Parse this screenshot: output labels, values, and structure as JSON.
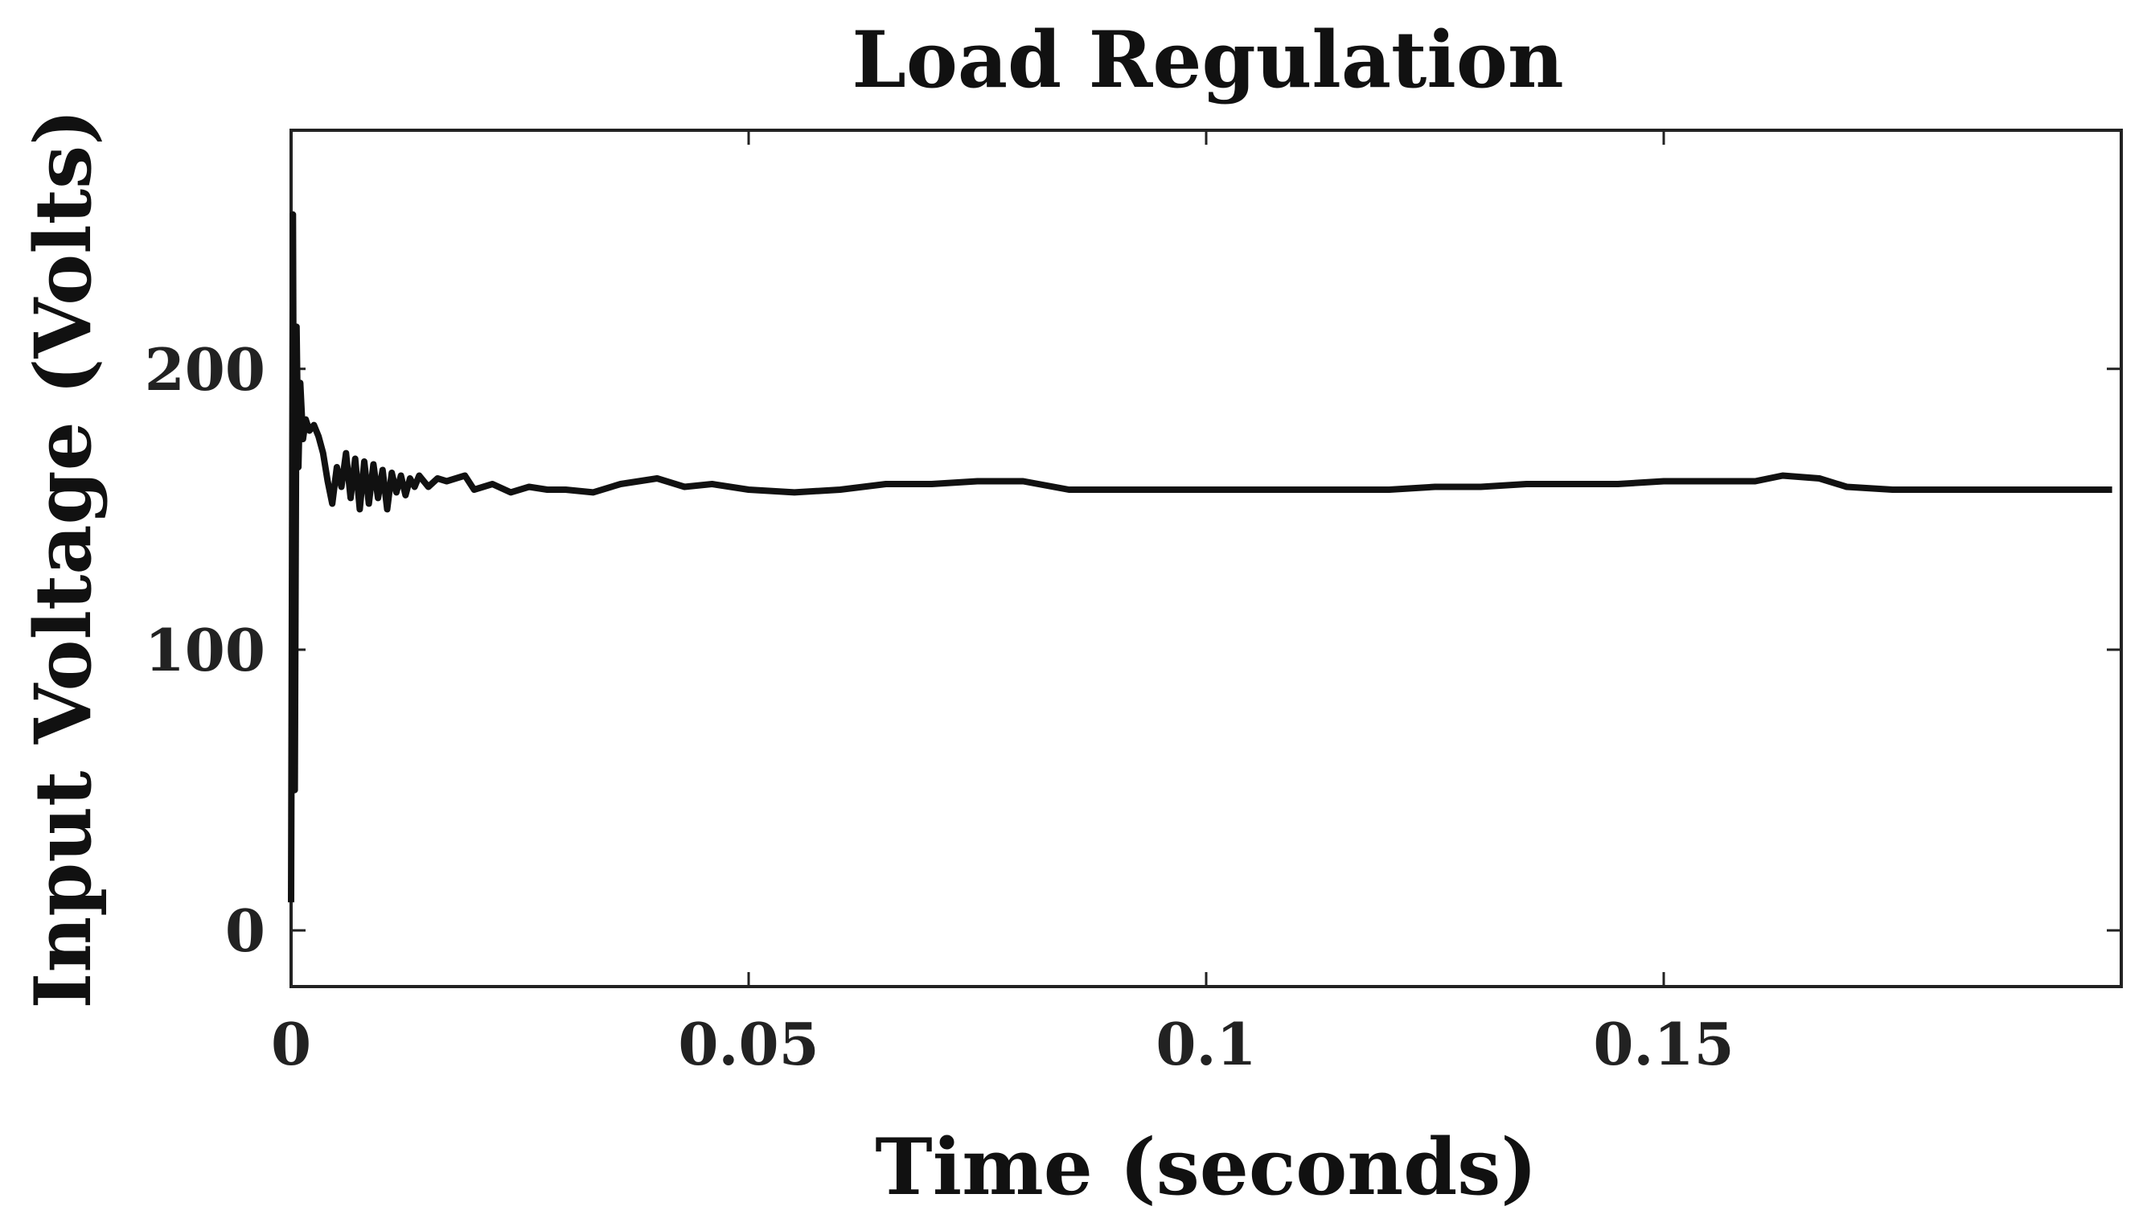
{
  "chart_data": {
    "type": "line",
    "title": "Load Regulation",
    "xlabel": "Time (seconds)",
    "ylabel": "Input Voltage (Volts)",
    "xlim": [
      0,
      0.2
    ],
    "ylim": [
      -20,
      285
    ],
    "xticks": [
      0,
      0.05,
      0.1,
      0.15
    ],
    "xtick_labels": [
      "0",
      "0.05",
      "0.1",
      "0.15"
    ],
    "yticks": [
      0,
      100,
      200
    ],
    "ytick_labels": [
      "0",
      "100",
      "200"
    ],
    "grid": false,
    "legend": "none",
    "line_color": "#111111",
    "series": [
      {
        "x": [
          0,
          0.0002,
          0.0004,
          0.0006,
          0.0008,
          0.001,
          0.0013,
          0.0016,
          0.002,
          0.0025,
          0.003,
          0.0035,
          0.004,
          0.0045,
          0.005,
          0.0055,
          0.006,
          0.0065,
          0.007,
          0.0075,
          0.008,
          0.0085,
          0.009,
          0.0095,
          0.01,
          0.0105,
          0.011,
          0.0115,
          0.012,
          0.0125,
          0.013,
          0.0135,
          0.014,
          0.015,
          0.016,
          0.017,
          0.018,
          0.019,
          0.02,
          0.022,
          0.024,
          0.026,
          0.028,
          0.03,
          0.033,
          0.036,
          0.04,
          0.043,
          0.046,
          0.05,
          0.055,
          0.06,
          0.065,
          0.07,
          0.075,
          0.08,
          0.085,
          0.09,
          0.095,
          0.1,
          0.105,
          0.11,
          0.115,
          0.12,
          0.125,
          0.13,
          0.135,
          0.14,
          0.145,
          0.15,
          0.155,
          0.16,
          0.163,
          0.167,
          0.17,
          0.175,
          0.18,
          0.185,
          0.19,
          0.195,
          0.199
        ],
        "y": [
          10,
          255,
          50,
          215,
          165,
          195,
          175,
          182,
          178,
          180,
          176,
          170,
          160,
          152,
          165,
          158,
          170,
          154,
          168,
          150,
          167,
          152,
          166,
          154,
          164,
          150,
          163,
          156,
          162,
          155,
          161,
          158,
          162,
          158,
          161,
          160,
          161,
          162,
          157,
          159,
          156,
          158,
          157,
          157,
          156,
          159,
          161,
          158,
          159,
          157,
          156,
          157,
          159,
          159,
          160,
          160,
          157,
          157,
          157,
          157,
          157,
          157,
          157,
          157,
          158,
          158,
          159,
          159,
          159,
          160,
          160,
          160,
          162,
          161,
          158,
          157,
          157,
          157,
          157,
          157,
          157
        ]
      }
    ]
  }
}
